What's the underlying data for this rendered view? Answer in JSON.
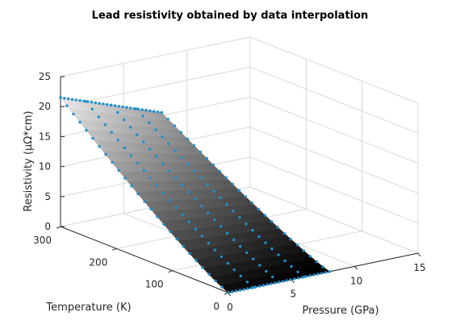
{
  "chart_data": {
    "type": "surface",
    "title": "Lead resistivity obtained by data interpolation",
    "xlabel": "Pressure (GPa)",
    "ylabel": "Temperature (K)",
    "zlabel": "Resistivity (μΩ*cm)",
    "xlim": [
      0,
      15
    ],
    "ylim": [
      0,
      300
    ],
    "zlim": [
      0,
      25
    ],
    "x_ticks": [
      "0",
      "5",
      "10",
      "15"
    ],
    "y_ticks": [
      "0",
      "100",
      "200",
      "300"
    ],
    "z_ticks": [
      "0",
      "5",
      "10",
      "15",
      "20",
      "25"
    ],
    "grid": true,
    "surface": {
      "x_range": [
        0,
        8
      ],
      "y_range": [
        0,
        300
      ],
      "z_corners": {
        "p0_t300": 21.5,
        "p8_t300": 15.5,
        "p0_t0": 0,
        "p8_t0": 0
      },
      "colormap": "gray"
    },
    "series": [
      {
        "marker": "dot",
        "color": "#1f8fd0",
        "lines": [
          {
            "fixed": "T",
            "value": 300,
            "p_range": [
              0,
              8
            ],
            "z": [
              21.5,
              15.5
            ]
          },
          {
            "fixed": "P",
            "value": 0,
            "t_range": [
              0,
              300
            ],
            "z": [
              0,
              21.5
            ]
          },
          {
            "fixed": "T",
            "value": 0,
            "p_range": [
              0,
              8
            ],
            "z": [
              0,
              0
            ]
          },
          {
            "fixed": "P",
            "value": 8,
            "t_range": [
              0,
              300
            ],
            "z": [
              0,
              15.5
            ]
          },
          {
            "fixed": "P",
            "value": 2,
            "t_range": [
              0,
              300
            ]
          },
          {
            "fixed": "P",
            "value": 4,
            "t_range": [
              0,
              300
            ]
          },
          {
            "fixed": "P",
            "value": 6,
            "t_range": [
              0,
              300
            ]
          }
        ]
      }
    ]
  }
}
